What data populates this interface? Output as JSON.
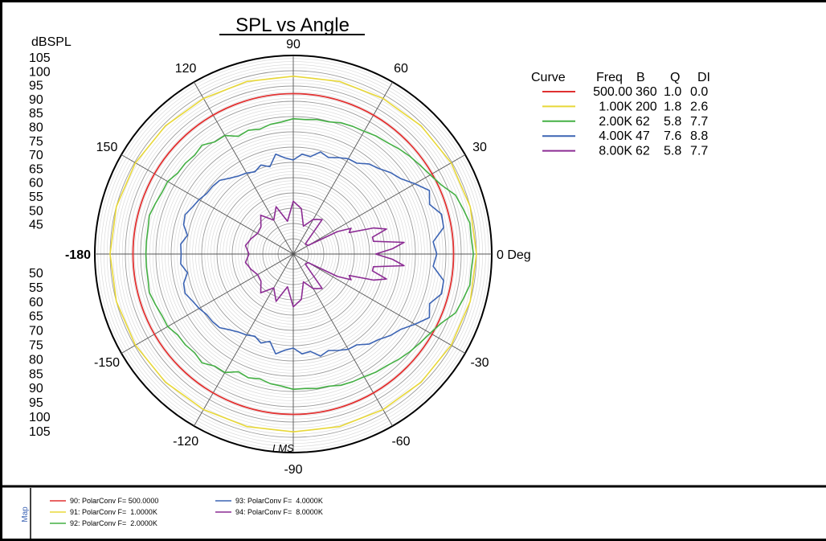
{
  "chart_data": {
    "type": "polar",
    "title": "SPL vs Angle",
    "radial_unit_label": "dBSPL",
    "radial_scale_labels_upper": [
      "105",
      "100",
      "95",
      "90",
      "85",
      "80",
      "75",
      "70",
      "65",
      "60",
      "55",
      "50",
      "45"
    ],
    "radial_scale_labels_lower": [
      "50",
      "55",
      "60",
      "65",
      "70",
      "75",
      "80",
      "85",
      "90",
      "95",
      "100",
      "105"
    ],
    "radial_range": [
      40,
      105
    ],
    "radial_major_step": 5,
    "radial_minor_step": 1,
    "angle_spoke_step_deg": 30,
    "angle_labels": [
      {
        "angle": 0,
        "text": "0 Deg"
      },
      {
        "angle": 30,
        "text": "30"
      },
      {
        "angle": 60,
        "text": "60"
      },
      {
        "angle": 90,
        "text": "90"
      },
      {
        "angle": 120,
        "text": "120"
      },
      {
        "angle": 150,
        "text": "150"
      },
      {
        "angle": 180,
        "text": "-180"
      },
      {
        "angle": -150,
        "text": "-150"
      },
      {
        "angle": -120,
        "text": "-120"
      },
      {
        "angle": -90,
        "text": "-90"
      },
      {
        "angle": -60,
        "text": "-60"
      },
      {
        "angle": -30,
        "text": "-30"
      }
    ],
    "table_headers": [
      "Curve",
      "Freq",
      "B",
      "Q",
      "DI"
    ],
    "series": [
      {
        "freq": "500.00",
        "B": "360",
        "Q": "1.0",
        "DI": "0.0",
        "color": "#e03030",
        "angles": [
          0,
          180
        ],
        "spl": [
          92.5,
          92.5
        ]
      },
      {
        "freq": "1.00K",
        "B": "200",
        "Q": "1.8",
        "DI": "2.6",
        "color": "#e8d838",
        "angles": [
          0,
          15,
          30,
          45,
          60,
          75,
          90,
          105,
          120,
          135,
          150,
          165,
          180
        ],
        "spl": [
          100,
          100,
          99.7,
          99.3,
          98.8,
          98.5,
          98.2,
          98.5,
          98.8,
          99.3,
          99.7,
          100,
          100
        ]
      },
      {
        "freq": "2.00K",
        "B": "62",
        "Q": "5.8",
        "DI": "7.7",
        "color": "#44b044",
        "angles": [
          0,
          5,
          10,
          15,
          20,
          25,
          30,
          35,
          40,
          45,
          50,
          55,
          60,
          65,
          70,
          75,
          80,
          85,
          90,
          95,
          100,
          105,
          110,
          115,
          120,
          125,
          130,
          135,
          140,
          145,
          150,
          155,
          160,
          165,
          170,
          175,
          180
        ],
        "spl": [
          99,
          98.5,
          98.7,
          97.5,
          96.5,
          93.5,
          91.8,
          90.7,
          89.8,
          88.8,
          87.7,
          87.2,
          86.4,
          86.1,
          85.7,
          84.8,
          84.7,
          84.2,
          84.3,
          83.4,
          83.1,
          82.3,
          83.1,
          82.5,
          84.8,
          84.8,
          86.5,
          85.7,
          86.2,
          86.2,
          87.5,
          87.5,
          88.1,
          88.8,
          88.3,
          88.3,
          88.3
        ]
      },
      {
        "freq": "4.00K",
        "B": "47",
        "Q": "7.6",
        "DI": "8.8",
        "color": "#3c64b4",
        "angles": [
          0,
          5,
          10,
          15,
          20,
          25,
          30,
          35,
          40,
          45,
          50,
          55,
          60,
          65,
          70,
          75,
          80,
          85,
          90,
          95,
          100,
          105,
          110,
          115,
          120,
          125,
          130,
          135,
          140,
          145,
          150,
          155,
          160,
          165,
          170,
          175,
          180
        ],
        "spl": [
          87,
          86,
          90,
          90.3,
          87.5,
          89.2,
          86,
          83,
          81.5,
          79.6,
          78.5,
          76.3,
          76,
          74.8,
          73.6,
          74.6,
          72.4,
          72.8,
          70.8,
          71.6,
          73.2,
          69.6,
          71,
          69.7,
          70.6,
          71.2,
          72.4,
          74.1,
          74.5,
          74.6,
          75.6,
          76.4,
          77.7,
          77.2,
          75.2,
          77,
          76.7
        ]
      },
      {
        "freq": "8.00K",
        "B": "62",
        "Q": "5.8",
        "DI": "7.7",
        "color": "#8c2c94",
        "angles": [
          0,
          3,
          6,
          9,
          12,
          15,
          18,
          21,
          24,
          27,
          30,
          40,
          50,
          60,
          70,
          80,
          90,
          100,
          110,
          120,
          130,
          140,
          150,
          160,
          170,
          180
        ],
        "spl": [
          67,
          72.5,
          76.5,
          66.6,
          66.5,
          71.6,
          67.6,
          59.6,
          60.7,
          56.2,
          45.6,
          45.2,
          54.7,
          53.1,
          49.7,
          55.1,
          57.3,
          50.9,
          56.5,
          52.8,
          56.6,
          53.8,
          53.5,
          54.7,
          55.9,
          54.5
        ]
      }
    ]
  },
  "stamp": "LMS",
  "sidebar": {
    "label": "Map"
  },
  "legend": [
    {
      "text": "90: PolarConv F= 500.0000",
      "color": "#e03030"
    },
    {
      "text": "91: PolarConv F=  1.0000K",
      "color": "#e8d838"
    },
    {
      "text": "92: PolarConv F=  2.0000K",
      "color": "#44b044"
    },
    {
      "text": "93: PolarConv F=  4.0000K",
      "color": "#3c64b4"
    },
    {
      "text": "94: PolarConv F=  8.0000K",
      "color": "#8c2c94"
    }
  ]
}
